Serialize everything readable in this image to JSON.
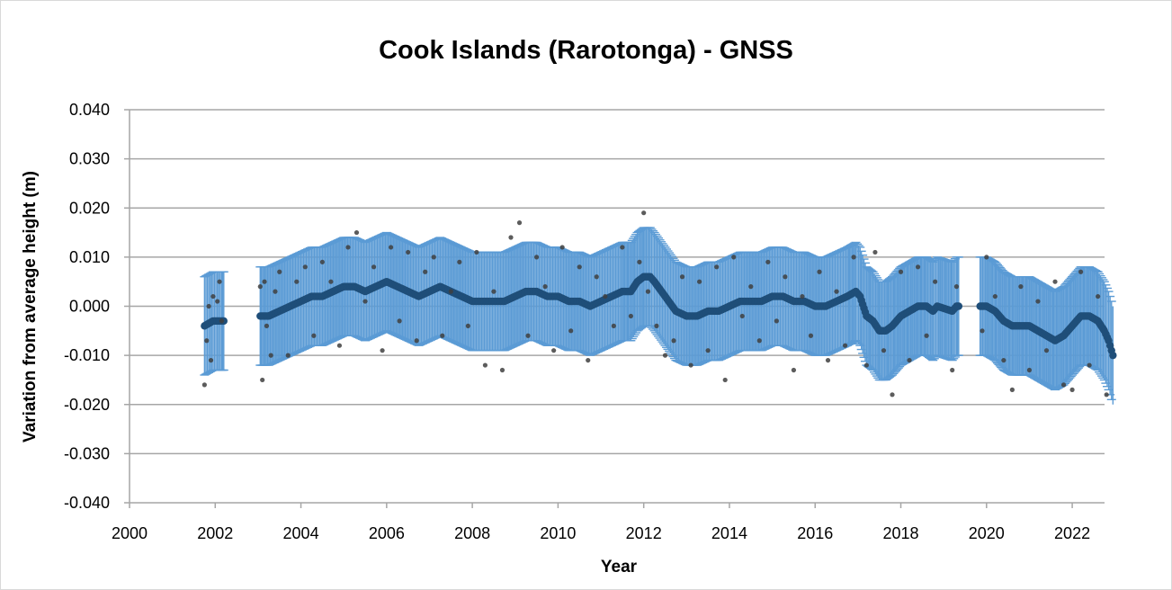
{
  "chart_data": {
    "type": "scatter",
    "title": "Cook Islands (Rarotonga) - GNSS",
    "xlabel": "Year",
    "ylabel": "Variation from average height (m)",
    "xlim": [
      2000,
      2023
    ],
    "ylim": [
      -0.04,
      0.04
    ],
    "x_ticks": [
      2000,
      2002,
      2004,
      2006,
      2008,
      2010,
      2012,
      2014,
      2016,
      2018,
      2020,
      2022
    ],
    "x_tick_labels": [
      "2000",
      "2002",
      "2004",
      "2006",
      "2008",
      "2010",
      "2012",
      "2014",
      "2016",
      "2018",
      "2020",
      "2022"
    ],
    "y_ticks": [
      0.04,
      0.03,
      0.02,
      0.01,
      0.0,
      -0.01,
      -0.02,
      -0.03,
      -0.04
    ],
    "y_tick_labels": [
      "0.040",
      "0.030",
      "0.020",
      "0.010",
      "0.000",
      "-0.010",
      "-0.020",
      "-0.030",
      "-0.040"
    ],
    "grid": "horizontal",
    "legend": "none",
    "colors": {
      "error_bar": "#5b9bd5",
      "smoothed": "#1f4e79",
      "daily": "#404040",
      "grid": "#a6a6a6"
    },
    "series": [
      {
        "kind": "daily_points",
        "x": [
          2001.75,
          2001.8,
          2001.85,
          2001.9,
          2001.95,
          2002.05,
          2002.1,
          2002.15,
          2003.05,
          2003.1,
          2003.15,
          2003.2,
          2003.3,
          2003.4,
          2003.5,
          2003.7,
          2003.9,
          2004.1,
          2004.3,
          2004.5,
          2004.7,
          2004.9,
          2005.1,
          2005.3,
          2005.5,
          2005.7,
          2005.9,
          2006.1,
          2006.3,
          2006.5,
          2006.7,
          2006.9,
          2007.1,
          2007.3,
          2007.5,
          2007.7,
          2007.9,
          2008.1,
          2008.3,
          2008.5,
          2008.7,
          2008.9,
          2009.1,
          2009.3,
          2009.5,
          2009.7,
          2009.9,
          2010.1,
          2010.3,
          2010.5,
          2010.7,
          2010.9,
          2011.1,
          2011.3,
          2011.5,
          2011.7,
          2011.9,
          2012.0,
          2012.1,
          2012.3,
          2012.5,
          2012.7,
          2012.9,
          2013.1,
          2013.3,
          2013.5,
          2013.7,
          2013.9,
          2014.1,
          2014.3,
          2014.5,
          2014.7,
          2014.9,
          2015.1,
          2015.3,
          2015.5,
          2015.7,
          2015.9,
          2016.1,
          2016.3,
          2016.5,
          2016.7,
          2016.9,
          2017.2,
          2017.4,
          2017.6,
          2017.8,
          2018.0,
          2018.2,
          2018.4,
          2018.6,
          2018.8,
          2019.2,
          2019.3,
          2019.9,
          2020.0,
          2020.2,
          2020.4,
          2020.6,
          2020.8,
          2021.0,
          2021.2,
          2021.4,
          2021.6,
          2021.8,
          2022.0,
          2022.2,
          2022.4,
          2022.6,
          2022.8
        ],
        "y": [
          -0.016,
          -0.007,
          0.0,
          -0.011,
          0.002,
          0.001,
          0.005,
          -0.003,
          0.004,
          -0.015,
          0.005,
          -0.004,
          -0.01,
          0.003,
          0.007,
          -0.01,
          0.005,
          0.008,
          -0.006,
          0.009,
          0.005,
          -0.008,
          0.012,
          0.015,
          0.001,
          0.008,
          -0.009,
          0.012,
          -0.003,
          0.011,
          -0.007,
          0.007,
          0.01,
          -0.006,
          0.003,
          0.009,
          -0.004,
          0.011,
          -0.012,
          0.003,
          -0.013,
          0.014,
          0.017,
          -0.006,
          0.01,
          0.004,
          -0.009,
          0.012,
          -0.005,
          0.008,
          -0.011,
          0.006,
          0.002,
          -0.004,
          0.012,
          -0.002,
          0.009,
          0.019,
          0.003,
          -0.004,
          -0.01,
          -0.007,
          0.006,
          -0.012,
          0.005,
          -0.009,
          0.008,
          -0.015,
          0.01,
          -0.002,
          0.004,
          -0.007,
          0.009,
          -0.003,
          0.006,
          -0.013,
          0.002,
          -0.006,
          0.007,
          -0.011,
          0.003,
          -0.008,
          0.01,
          -0.012,
          0.011,
          -0.009,
          -0.018,
          0.007,
          -0.011,
          0.008,
          -0.006,
          0.005,
          -0.013,
          0.004,
          -0.005,
          0.01,
          0.002,
          -0.011,
          -0.017,
          0.004,
          -0.013,
          0.001,
          -0.009,
          0.005,
          -0.016,
          -0.017,
          0.007,
          -0.012,
          0.002,
          -0.018
        ]
      },
      {
        "kind": "smoothed_with_error",
        "error": 0.01,
        "x": [
          2001.75,
          2001.85,
          2001.95,
          2002.05,
          2002.15,
          2002.2,
          2003.05,
          2003.25,
          2003.5,
          2003.75,
          2004.0,
          2004.25,
          2004.5,
          2004.75,
          2005.0,
          2005.25,
          2005.5,
          2005.75,
          2006.0,
          2006.25,
          2006.5,
          2006.75,
          2007.0,
          2007.25,
          2007.5,
          2007.75,
          2008.0,
          2008.25,
          2008.5,
          2008.75,
          2009.0,
          2009.25,
          2009.5,
          2009.75,
          2010.0,
          2010.25,
          2010.5,
          2010.75,
          2011.0,
          2011.25,
          2011.5,
          2011.7,
          2011.85,
          2012.0,
          2012.15,
          2012.25,
          2012.5,
          2012.75,
          2013.0,
          2013.25,
          2013.5,
          2013.75,
          2014.0,
          2014.25,
          2014.5,
          2014.75,
          2015.0,
          2015.25,
          2015.5,
          2015.75,
          2016.0,
          2016.25,
          2016.5,
          2016.75,
          2016.95,
          2017.05,
          2017.2,
          2017.35,
          2017.5,
          2017.65,
          2017.8,
          2018.0,
          2018.2,
          2018.4,
          2018.6,
          2018.75,
          2018.85,
          2019.2,
          2019.3,
          2019.35,
          2019.85,
          2020.0,
          2020.2,
          2020.4,
          2020.6,
          2020.8,
          2021.0,
          2021.2,
          2021.4,
          2021.6,
          2021.8,
          2022.0,
          2022.2,
          2022.4,
          2022.6,
          2022.75,
          2022.85,
          2022.95
        ],
        "y": [
          -0.004,
          -0.0035,
          -0.003,
          -0.003,
          -0.003,
          -0.003,
          -0.002,
          -0.002,
          -0.001,
          0.0,
          0.001,
          0.002,
          0.002,
          0.003,
          0.004,
          0.004,
          0.003,
          0.004,
          0.005,
          0.004,
          0.003,
          0.002,
          0.003,
          0.004,
          0.003,
          0.002,
          0.001,
          0.001,
          0.001,
          0.001,
          0.002,
          0.003,
          0.003,
          0.002,
          0.002,
          0.001,
          0.001,
          0.0,
          0.001,
          0.002,
          0.003,
          0.003,
          0.005,
          0.006,
          0.006,
          0.005,
          0.002,
          -0.001,
          -0.002,
          -0.002,
          -0.001,
          -0.001,
          0.0,
          0.001,
          0.001,
          0.001,
          0.002,
          0.002,
          0.001,
          0.001,
          0.0,
          0.0,
          0.001,
          0.002,
          0.003,
          0.002,
          -0.002,
          -0.003,
          -0.005,
          -0.005,
          -0.004,
          -0.002,
          -0.001,
          0.0,
          0.0,
          -0.001,
          0.0,
          -0.001,
          0.0,
          0.0,
          0.0,
          0.0,
          -0.001,
          -0.003,
          -0.004,
          -0.004,
          -0.004,
          -0.005,
          -0.006,
          -0.007,
          -0.006,
          -0.004,
          -0.002,
          -0.002,
          -0.003,
          -0.005,
          -0.007,
          -0.01
        ]
      }
    ]
  }
}
